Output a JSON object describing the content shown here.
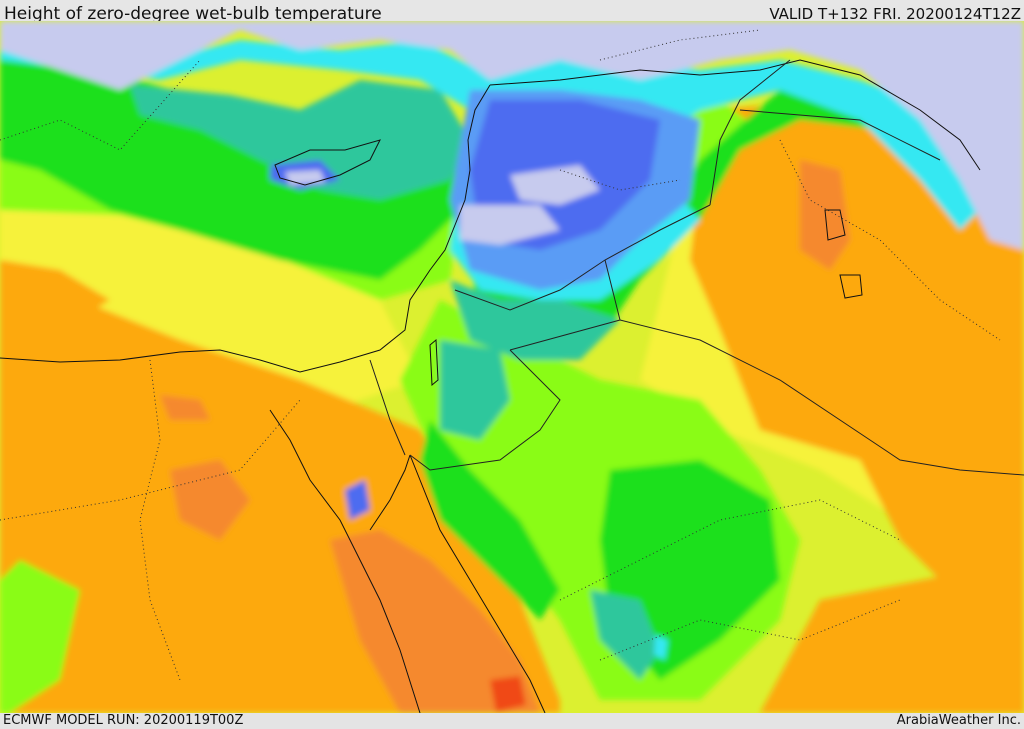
{
  "header": {
    "title": "Height of zero-degree wet-bulb temperature",
    "valid": "VALID T+132 FRI. 20200124T12Z"
  },
  "footer": {
    "model_run": "ECMWF MODEL RUN: 20200119T00Z",
    "credit": "ArabiaWeather Inc."
  },
  "palette": {
    "lavender": "#c7cbee",
    "blue": "#4d6cf0",
    "light_blue": "#5a9cf5",
    "cyan": "#36e8f2",
    "teal": "#2ec79c",
    "green": "#1ee01e",
    "light_green": "#8afc12",
    "yellow_green": "#dcf030",
    "yellow": "#f6f23a",
    "gold": "#f8c412",
    "orange": "#fda90d",
    "dark_orange": "#f5892d",
    "red_orange": "#f04a18"
  }
}
